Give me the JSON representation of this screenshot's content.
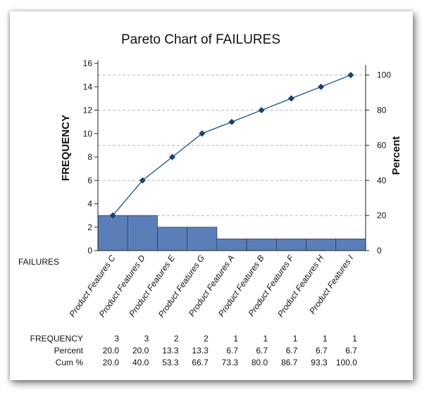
{
  "chart_data": {
    "type": "bar",
    "title": "Pareto Chart of FAILURES",
    "xlabel": "FAILURES",
    "ylabel": "FREQUENCY",
    "y2label": "Percent",
    "categories": [
      "Product Features C",
      "Product Features D",
      "Product Features E",
      "Product Features G",
      "Product Features A",
      "Product Features B",
      "Product Features F",
      "Product Features H",
      "Product Features I"
    ],
    "series": [
      {
        "values": [
          3,
          3,
          2,
          2,
          1,
          1,
          1,
          1,
          1
        ]
      },
      {
        "values": [
          20.0,
          40.0,
          53.3,
          66.7,
          73.3,
          80.0,
          86.7,
          93.3,
          100.0
        ]
      }
    ],
    "ylim": [
      0,
      16
    ],
    "y2lim": [
      0,
      106.67
    ],
    "yticks": [
      0,
      2,
      4,
      6,
      8,
      10,
      12,
      14,
      16
    ],
    "y2ticks": [
      0,
      20,
      40,
      60,
      80,
      100
    ],
    "grid": true,
    "colors": {
      "bar": "#5a7fb8",
      "bar_edge": "#2b3c5a",
      "line": "#2c5e8f",
      "marker": "#1f3e6e",
      "grid": "#b8b8b8"
    },
    "table": {
      "row_labels": [
        "FREQUENCY",
        "Percent",
        "Cum %"
      ],
      "frequency": [
        "3",
        "3",
        "2",
        "2",
        "1",
        "1",
        "1",
        "1",
        "1"
      ],
      "percent": [
        "20.0",
        "20.0",
        "13.3",
        "13.3",
        "6.7",
        "6.7",
        "6.7",
        "6.7",
        "6.7"
      ],
      "cum_percent": [
        "20.0",
        "40.0",
        "53.3",
        "66.7",
        "73.3",
        "80.0",
        "86.7",
        "93.3",
        "100.0"
      ]
    }
  }
}
